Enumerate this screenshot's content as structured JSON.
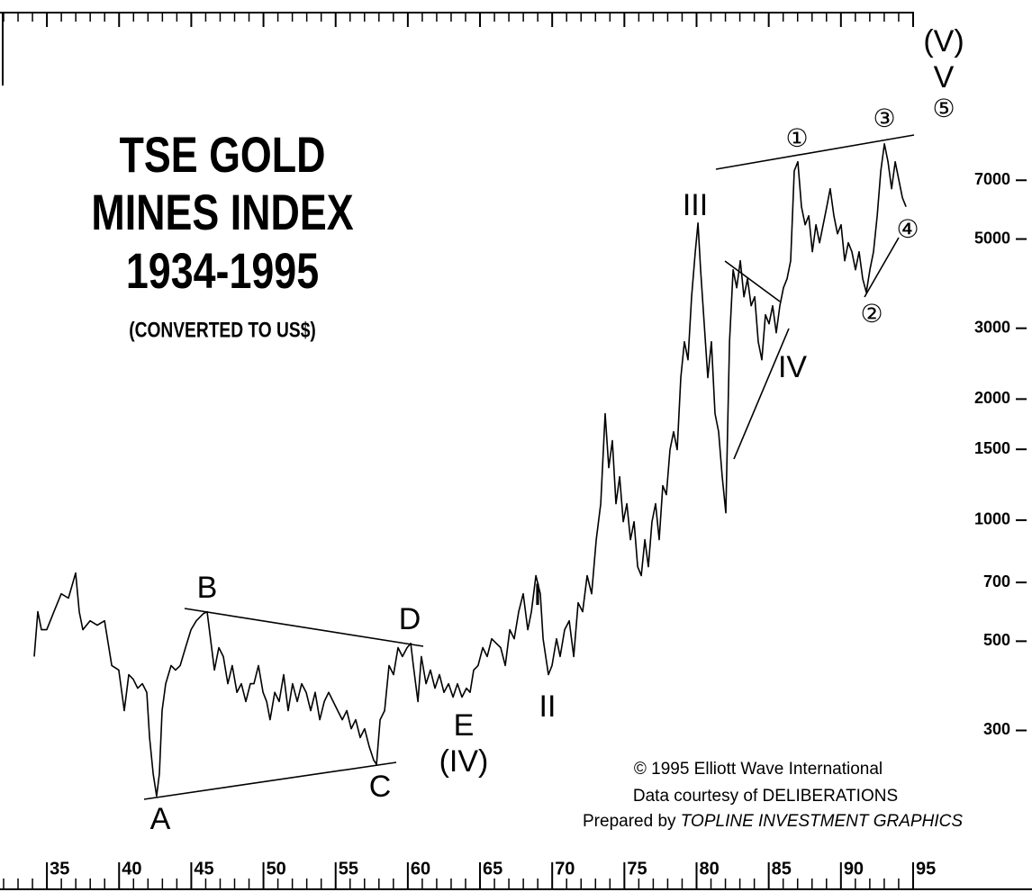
{
  "chart_data": {
    "type": "line",
    "title_lines": [
      "TSE GOLD",
      "MINES INDEX",
      "1934-1995"
    ],
    "subtitle": "(CONVERTED TO US$)",
    "credits": {
      "copyright": "© 1995 Elliott Wave International",
      "data": "Data courtesy of DELIBERATIONS",
      "prepared": "Prepared by",
      "preparer": "TOPLINE INVESTMENT GRAPHICS"
    },
    "color": "#000000",
    "yscale": "log",
    "xlim": [
      1932,
      1996
    ],
    "ylim": [
      150,
      18000
    ],
    "yticks": [
      300,
      500,
      700,
      1000,
      1500,
      2000,
      3000,
      5000,
      7000
    ],
    "xticks": [
      {
        "value": 1935,
        "label": "35"
      },
      {
        "value": 1940,
        "label": "40"
      },
      {
        "value": 1945,
        "label": "45"
      },
      {
        "value": 1950,
        "label": "50"
      },
      {
        "value": 1955,
        "label": "55"
      },
      {
        "value": 1960,
        "label": "60"
      },
      {
        "value": 1965,
        "label": "65"
      },
      {
        "value": 1970,
        "label": "70"
      },
      {
        "value": 1975,
        "label": "75"
      },
      {
        "value": 1980,
        "label": "80"
      },
      {
        "value": 1985,
        "label": "85"
      },
      {
        "value": 1990,
        "label": "90"
      },
      {
        "value": 1995,
        "label": "95"
      }
    ],
    "xminorticks": [
      1932,
      1933,
      1934,
      1936,
      1937,
      1938,
      1939,
      1941,
      1942,
      1943,
      1944,
      1946,
      1947,
      1948,
      1949,
      1951,
      1952,
      1953,
      1954,
      1956,
      1957,
      1958,
      1959,
      1961,
      1962,
      1963,
      1964,
      1966,
      1967,
      1968,
      1969,
      1971,
      1972,
      1973,
      1974,
      1976,
      1977,
      1978,
      1979,
      1981,
      1982,
      1983,
      1984,
      1986,
      1987,
      1988,
      1989,
      1991,
      1992,
      1993,
      1994
    ],
    "annotations": [
      "B",
      "D",
      "A",
      "C",
      "E",
      "(IV)",
      "I",
      "II",
      "III",
      "IV",
      "(V)",
      "V",
      "⑤",
      "①",
      "②",
      "③",
      "④"
    ],
    "x": [
      1934.12,
      1934.37,
      1934.62,
      1934.99,
      1935.49,
      1935.99,
      1936.49,
      1936.99,
      1937.24,
      1937.49,
      1937.99,
      1938.49,
      1938.99,
      1939.49,
      1939.98,
      1940.36,
      1940.67,
      1940.98,
      1941.29,
      1941.61,
      1941.92,
      1942.11,
      1942.36,
      1942.6,
      1942.79,
      1942.98,
      1943.23,
      1943.6,
      1943.91,
      1944.23,
      1944.6,
      1944.98,
      1945.35,
      1945.85,
      1946.1,
      1946.41,
      1946.6,
      1946.91,
      1947.22,
      1947.53,
      1947.84,
      1948.16,
      1948.47,
      1948.78,
      1949.09,
      1949.34,
      1949.65,
      1949.97,
      1950.22,
      1950.46,
      1950.78,
      1951.09,
      1951.4,
      1951.71,
      1952.02,
      1952.34,
      1952.65,
      1952.96,
      1953.27,
      1953.58,
      1953.9,
      1954.21,
      1954.52,
      1954.83,
      1955.14,
      1955.46,
      1955.77,
      1956.08,
      1956.39,
      1956.7,
      1957.01,
      1957.33,
      1957.64,
      1957.83,
      1958.08,
      1958.39,
      1958.7,
      1959.01,
      1959.32,
      1959.63,
      1959.95,
      1960.2,
      1960.38,
      1960.7,
      1960.94,
      1961.26,
      1961.57,
      1961.88,
      1962.19,
      1962.5,
      1962.82,
      1963.13,
      1963.44,
      1963.75,
      1964.06,
      1964.31,
      1964.56,
      1964.87,
      1965.19,
      1965.5,
      1965.81,
      1966.12,
      1966.43,
      1966.75,
      1967.06,
      1967.37,
      1967.68,
      1967.99,
      1968.31,
      1968.56,
      1968.87,
      1969.18,
      1969.37,
      1969.55,
      1969.74,
      1969.99,
      1970.3,
      1970.55,
      1970.86,
      1971.18,
      1971.49,
      1971.8,
      1972.11,
      1972.42,
      1972.73,
      1973.05,
      1973.36,
      1973.67,
      1973.92,
      1974.17,
      1974.42,
      1974.67,
      1974.92,
      1975.17,
      1975.42,
      1975.67,
      1975.92,
      1976.17,
      1976.42,
      1976.66,
      1976.91,
      1977.16,
      1977.41,
      1977.66,
      1977.91,
      1978.16,
      1978.41,
      1978.66,
      1978.91,
      1979.16,
      1979.41,
      1979.66,
      1979.91,
      1980.1,
      1980.28,
      1980.53,
      1980.78,
      1981.03,
      1981.28,
      1981.53,
      1981.78,
      1982.03,
      1982.28,
      1982.53,
      1982.78,
      1983.03,
      1983.28,
      1983.53,
      1983.78,
      1984.03,
      1984.27,
      1984.52,
      1984.77,
      1985.02,
      1985.27,
      1985.52,
      1985.77,
      1986.02,
      1986.27,
      1986.52,
      1986.77,
      1987.02,
      1987.27,
      1987.52,
      1987.77,
      1988.02,
      1988.27,
      1988.52,
      1988.77,
      1989.02,
      1989.26,
      1989.51,
      1989.76,
      1990.01,
      1990.26,
      1990.51,
      1990.76,
      1991.01,
      1991.26,
      1991.51,
      1991.76,
      1992.01,
      1992.26,
      1992.51,
      1992.76,
      1993.01,
      1993.26,
      1993.51,
      1993.76,
      1994.01,
      1994.26,
      1994.51
    ],
    "values": [
      458,
      592,
      534,
      534,
      592,
      656,
      640,
      739,
      592,
      534,
      562,
      548,
      562,
      435,
      424,
      336,
      413,
      402,
      382,
      392,
      373,
      288,
      234,
      206,
      234,
      336,
      392,
      435,
      424,
      435,
      482,
      534,
      562,
      586,
      592,
      482,
      424,
      482,
      458,
      392,
      435,
      373,
      392,
      354,
      392,
      392,
      435,
      373,
      354,
      319,
      373,
      354,
      413,
      336,
      392,
      354,
      392,
      373,
      336,
      373,
      319,
      354,
      373,
      354,
      336,
      319,
      336,
      303,
      319,
      288,
      303,
      273,
      253,
      247,
      319,
      336,
      435,
      413,
      482,
      458,
      482,
      494,
      435,
      354,
      458,
      392,
      424,
      382,
      413,
      373,
      392,
      363,
      392,
      363,
      382,
      373,
      424,
      435,
      482,
      458,
      507,
      494,
      482,
      435,
      534,
      507,
      592,
      656,
      534,
      592,
      728,
      656,
      507,
      458,
      413,
      435,
      507,
      458,
      534,
      562,
      458,
      623,
      592,
      728,
      656,
      894,
      1099,
      1840,
      1350,
      1576,
      1099,
      1282,
      991,
      1099,
      894,
      991,
      766,
      728,
      894,
      766,
      991,
      1099,
      894,
      1218,
      1157,
      1497,
      1659,
      1497,
      2260,
      2777,
      2505,
      3593,
      4649,
      5480,
      4194,
      3078,
      2260,
      2777,
      1840,
      1659,
      1282,
      1043,
      2777,
      4194,
      3783,
      4415,
      3593,
      3982,
      3412,
      3593,
      2777,
      2505,
      3241,
      3078,
      3412,
      2923,
      3412,
      3783,
      3982,
      4415,
      7389,
      7782,
      6015,
      5425,
      5712,
      4649,
      5425,
      4894,
      5425,
      6015,
      6668,
      5712,
      5154,
      5425,
      4415,
      4894,
      4649,
      4194,
      4649,
      3982,
      3687,
      4194,
      4649,
      5712,
      7389,
      8625,
      7782,
      6668,
      7782,
      7018,
      6332,
      6015
    ]
  }
}
